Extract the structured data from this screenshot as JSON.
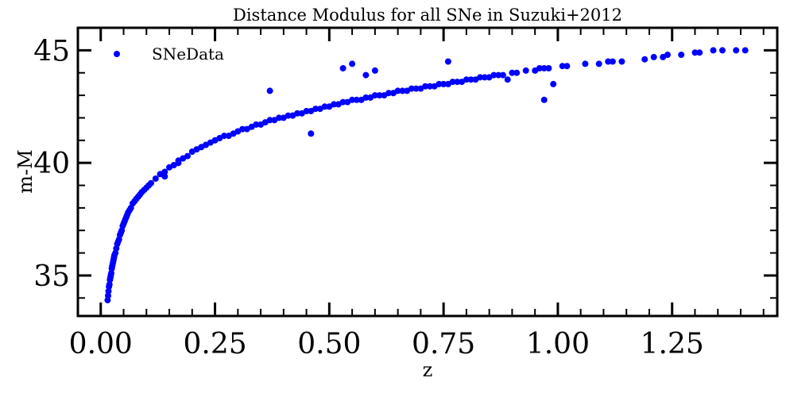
{
  "chart_data": {
    "type": "scatter",
    "title": "Distance Modulus for all SNe in Suzuki+2012",
    "xlabel": "z",
    "ylabel": "m-M",
    "xlim": [
      -0.05,
      1.48
    ],
    "ylim": [
      33.2,
      46.0
    ],
    "xticks": [
      0.0,
      0.25,
      0.5,
      0.75,
      1.0,
      1.25
    ],
    "xtick_labels": [
      "0.00",
      "0.25",
      "0.50",
      "0.75",
      "1.00",
      "1.25"
    ],
    "xminor_step": 0.05,
    "yticks": [
      35,
      40,
      45
    ],
    "ytick_labels": [
      "35",
      "40",
      "45"
    ],
    "yminor_step": 1,
    "grid": false,
    "legend": {
      "position": "top-left",
      "entries": [
        {
          "label": "SNeData",
          "color": "#0000ff",
          "marker": "circle"
        }
      ]
    },
    "series": [
      {
        "name": "SNeData",
        "color": "#0000ff",
        "x": [
          0.015,
          0.016,
          0.017,
          0.018,
          0.019,
          0.02,
          0.021,
          0.022,
          0.023,
          0.024,
          0.025,
          0.026,
          0.027,
          0.028,
          0.029,
          0.03,
          0.032,
          0.034,
          0.036,
          0.038,
          0.04,
          0.042,
          0.044,
          0.046,
          0.048,
          0.05,
          0.052,
          0.054,
          0.056,
          0.058,
          0.06,
          0.063,
          0.066,
          0.07,
          0.074,
          0.078,
          0.082,
          0.086,
          0.09,
          0.095,
          0.1,
          0.105,
          0.11,
          0.12,
          0.13,
          0.14,
          0.15,
          0.16,
          0.17,
          0.18,
          0.19,
          0.2,
          0.21,
          0.22,
          0.23,
          0.24,
          0.25,
          0.26,
          0.27,
          0.28,
          0.29,
          0.3,
          0.31,
          0.32,
          0.33,
          0.34,
          0.35,
          0.36,
          0.37,
          0.38,
          0.39,
          0.4,
          0.41,
          0.42,
          0.43,
          0.44,
          0.45,
          0.46,
          0.47,
          0.48,
          0.49,
          0.5,
          0.51,
          0.52,
          0.53,
          0.54,
          0.55,
          0.56,
          0.57,
          0.58,
          0.59,
          0.6,
          0.61,
          0.62,
          0.63,
          0.64,
          0.65,
          0.66,
          0.67,
          0.68,
          0.69,
          0.7,
          0.71,
          0.72,
          0.73,
          0.74,
          0.75,
          0.76,
          0.77,
          0.78,
          0.79,
          0.8,
          0.81,
          0.82,
          0.83,
          0.84,
          0.85,
          0.86,
          0.87,
          0.88,
          0.9,
          0.91,
          0.93,
          0.95,
          0.96,
          0.97,
          0.98,
          1.01,
          1.02,
          1.06,
          1.09,
          1.11,
          1.12,
          1.14,
          1.19,
          1.21,
          1.23,
          1.24,
          1.27,
          1.3,
          1.31,
          1.34,
          1.36,
          1.39,
          1.41,
          0.37,
          0.42,
          0.46,
          0.55,
          0.58,
          0.76,
          0.97,
          0.99,
          0.14,
          0.17,
          0.53,
          0.6,
          0.64,
          0.89
        ],
        "y": [
          33.9,
          34.1,
          34.3,
          34.5,
          34.6,
          34.8,
          34.9,
          35.0,
          35.1,
          35.3,
          35.4,
          35.5,
          35.6,
          35.7,
          35.8,
          35.9,
          36.0,
          36.2,
          36.4,
          36.5,
          36.6,
          36.8,
          36.9,
          37.0,
          37.2,
          37.3,
          37.4,
          37.5,
          37.6,
          37.7,
          37.8,
          37.9,
          38.0,
          38.2,
          38.3,
          38.4,
          38.5,
          38.6,
          38.7,
          38.8,
          38.9,
          39.0,
          39.1,
          39.3,
          39.5,
          39.6,
          39.8,
          39.9,
          40.1,
          40.2,
          40.3,
          40.5,
          40.6,
          40.7,
          40.8,
          40.9,
          41.0,
          41.1,
          41.2,
          41.2,
          41.3,
          41.4,
          41.5,
          41.5,
          41.6,
          41.7,
          41.7,
          41.8,
          41.9,
          41.9,
          42.0,
          42.0,
          42.1,
          42.1,
          42.2,
          42.2,
          42.3,
          42.3,
          42.4,
          42.4,
          42.5,
          42.5,
          42.6,
          42.6,
          42.7,
          42.7,
          42.8,
          42.8,
          42.8,
          42.9,
          42.9,
          43.0,
          43.0,
          43.0,
          43.1,
          43.1,
          43.2,
          43.2,
          43.2,
          43.3,
          43.3,
          43.3,
          43.4,
          43.4,
          43.4,
          43.5,
          43.5,
          43.5,
          43.6,
          43.6,
          43.6,
          43.7,
          43.7,
          43.7,
          43.8,
          43.8,
          43.8,
          43.9,
          43.9,
          43.9,
          44.0,
          44.0,
          44.1,
          44.1,
          44.2,
          44.2,
          44.2,
          44.3,
          44.3,
          44.4,
          44.4,
          44.5,
          44.5,
          44.5,
          44.6,
          44.7,
          44.7,
          44.8,
          44.8,
          44.9,
          44.9,
          45.0,
          45.0,
          45.0,
          45.0,
          43.2,
          42.1,
          41.3,
          44.4,
          43.9,
          44.5,
          42.8,
          43.5,
          39.4,
          40.0,
          44.2,
          44.1,
          43.1,
          43.7
        ]
      }
    ]
  }
}
